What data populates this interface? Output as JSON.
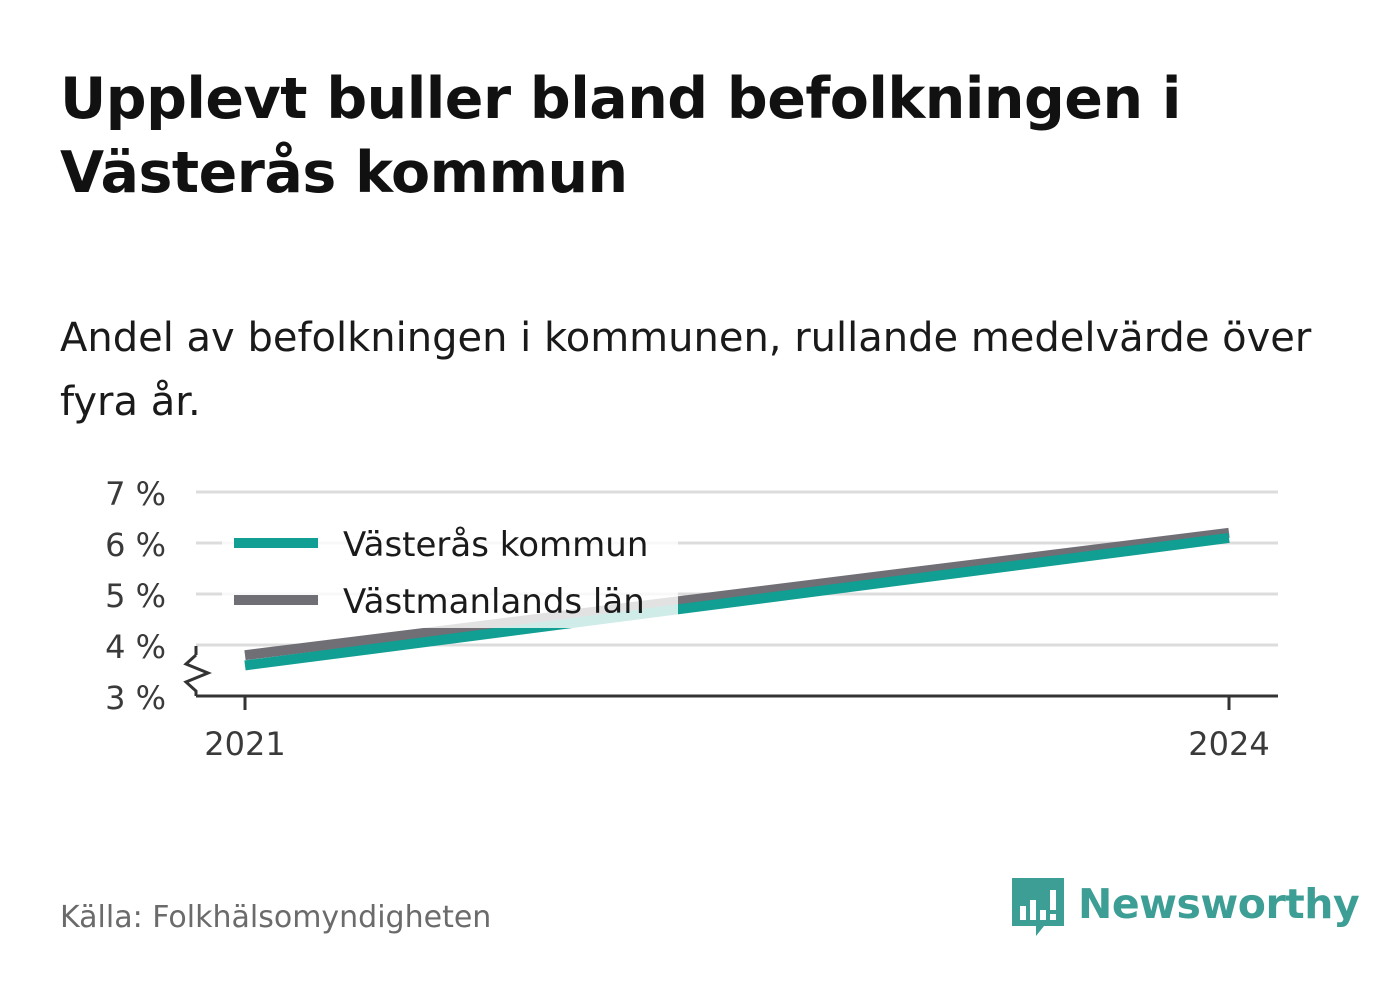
{
  "title": "Upplevt buller bland befolkningen i Västerås kommun",
  "subtitle": "Andel av befolkningen i kommunen, rullande medelvärde över fyra år.",
  "source": "Källa: Folkhälsomyndigheten",
  "brand": {
    "name": "Newsworthy",
    "color": "#3d9e95",
    "icon": "newsworthy-logo-icon"
  },
  "chart_data": {
    "type": "line",
    "x": [
      "2021",
      "2024"
    ],
    "series": [
      {
        "name": "Västerås kommun",
        "color": "#119e93",
        "values": [
          3.6,
          6.1
        ]
      },
      {
        "name": "Västmanlands län",
        "color": "#6f6f75",
        "values": [
          3.8,
          6.2
        ]
      }
    ],
    "ylim": [
      3,
      7
    ],
    "yticks": [
      3,
      4,
      5,
      6,
      7
    ],
    "ytick_labels": [
      "3 %",
      "4 %",
      "5 %",
      "6 %",
      "7 %"
    ],
    "xlabel": "",
    "ylabel": "",
    "grid": true,
    "y_axis_break": true,
    "legend_placement": "top-left"
  }
}
